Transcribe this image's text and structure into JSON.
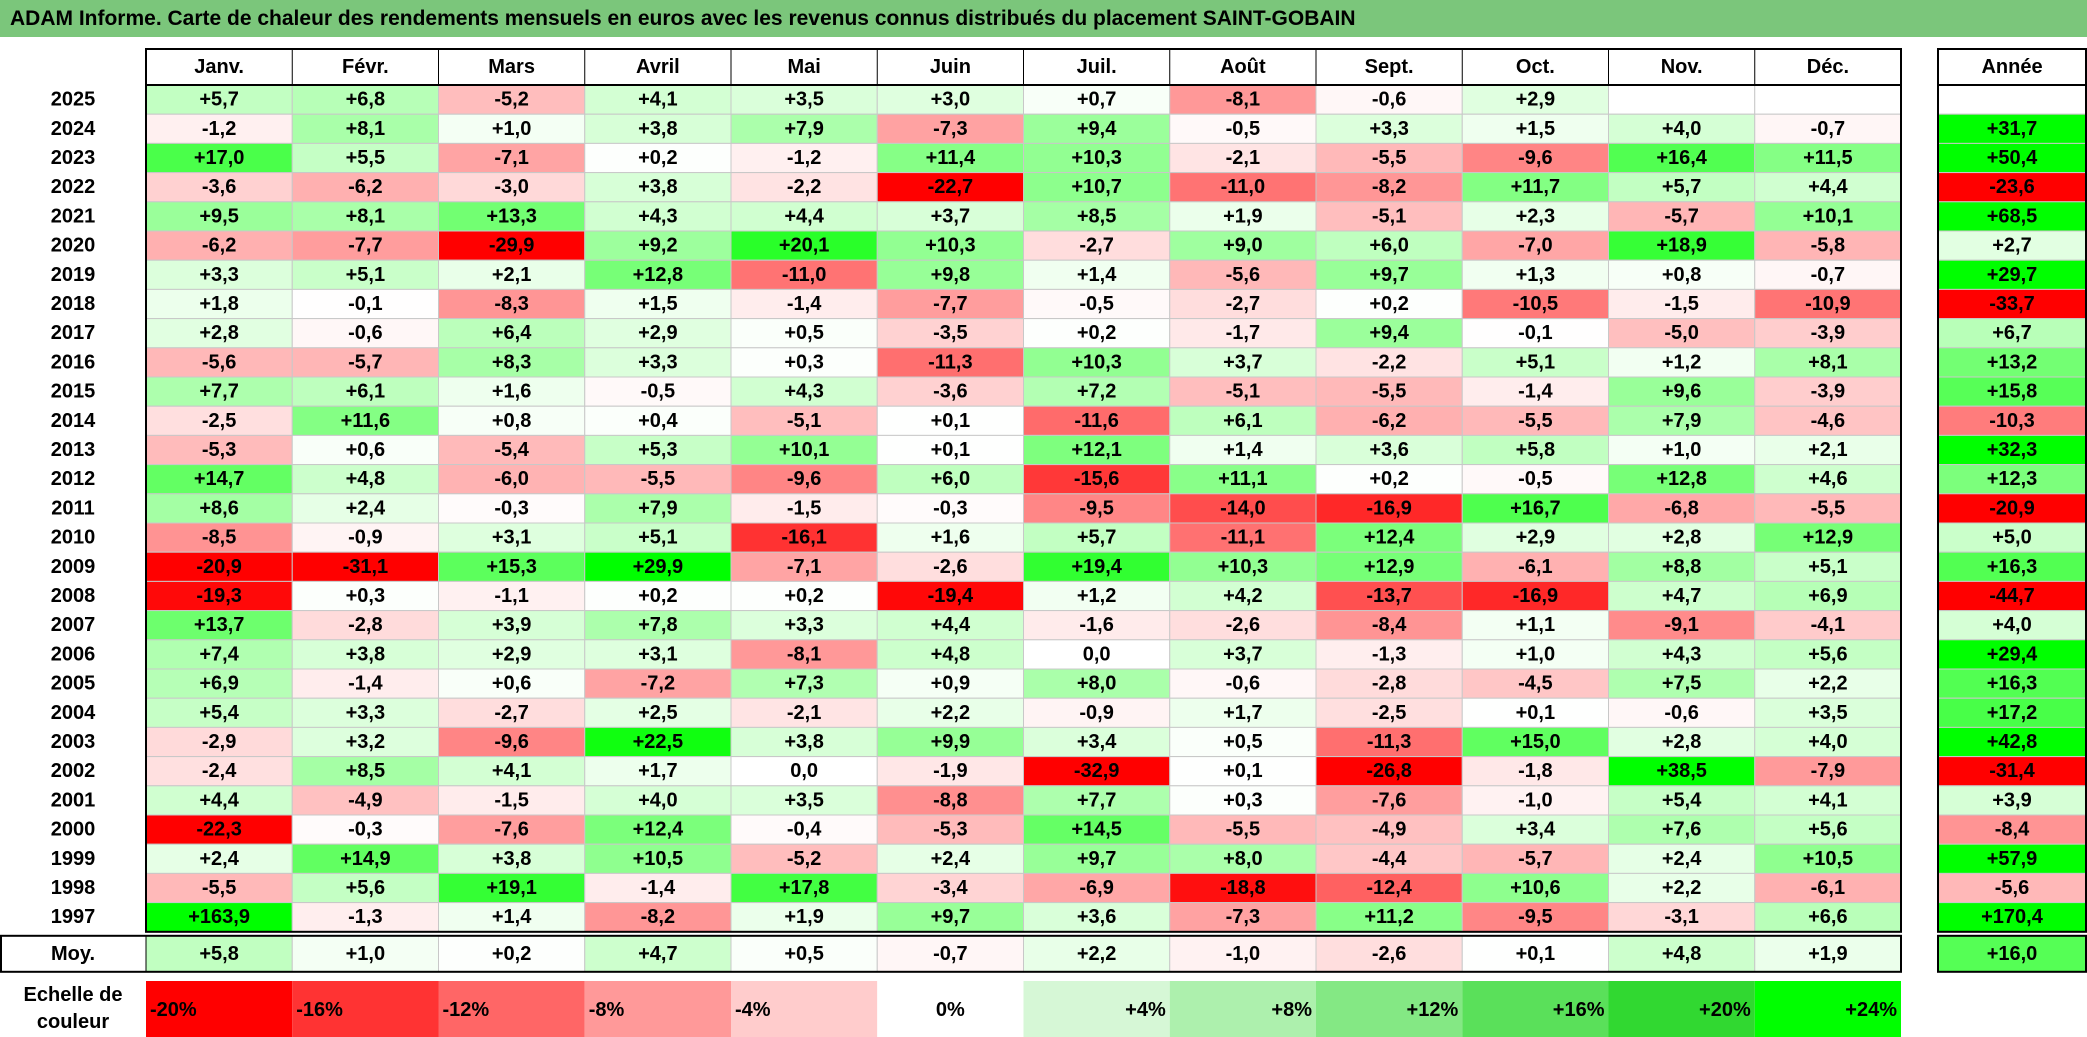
{
  "title": "ADAM Informe. Carte de chaleur des rendements mensuels en euros avec les revenus connus distribués du placement SAINT-GOBAIN",
  "chart_data": {
    "type": "heatmap",
    "columns": [
      "Janv.",
      "Févr.",
      "Mars",
      "Avril",
      "Mai",
      "Juin",
      "Juil.",
      "Août",
      "Sept.",
      "Oct.",
      "Nov.",
      "Déc."
    ],
    "year_header": "Année",
    "rows": [
      {
        "label": "2025",
        "values": [
          "+5,7",
          "+6,8",
          "-5,2",
          "+4,1",
          "+3,5",
          "+3,0",
          "+0,7",
          "-8,1",
          "-0,6",
          "+2,9",
          "",
          ""
        ],
        "annual": ""
      },
      {
        "label": "2024",
        "values": [
          "-1,2",
          "+8,1",
          "+1,0",
          "+3,8",
          "+7,9",
          "-7,3",
          "+9,4",
          "-0,5",
          "+3,3",
          "+1,5",
          "+4,0",
          "-0,7"
        ],
        "annual": "+31,7"
      },
      {
        "label": "2023",
        "values": [
          "+17,0",
          "+5,5",
          "-7,1",
          "+0,2",
          "-1,2",
          "+11,4",
          "+10,3",
          "-2,1",
          "-5,5",
          "-9,6",
          "+16,4",
          "+11,5"
        ],
        "annual": "+50,4"
      },
      {
        "label": "2022",
        "values": [
          "-3,6",
          "-6,2",
          "-3,0",
          "+3,8",
          "-2,2",
          "-22,7",
          "+10,7",
          "-11,0",
          "-8,2",
          "+11,7",
          "+5,7",
          "+4,4"
        ],
        "annual": "-23,6"
      },
      {
        "label": "2021",
        "values": [
          "+9,5",
          "+8,1",
          "+13,3",
          "+4,3",
          "+4,4",
          "+3,7",
          "+8,5",
          "+1,9",
          "-5,1",
          "+2,3",
          "-5,7",
          "+10,1"
        ],
        "annual": "+68,5"
      },
      {
        "label": "2020",
        "values": [
          "-6,2",
          "-7,7",
          "-29,9",
          "+9,2",
          "+20,1",
          "+10,3",
          "-2,7",
          "+9,0",
          "+6,0",
          "-7,0",
          "+18,9",
          "-5,8"
        ],
        "annual": "+2,7"
      },
      {
        "label": "2019",
        "values": [
          "+3,3",
          "+5,1",
          "+2,1",
          "+12,8",
          "-11,0",
          "+9,8",
          "+1,4",
          "-5,6",
          "+9,7",
          "+1,3",
          "+0,8",
          "-0,7"
        ],
        "annual": "+29,7"
      },
      {
        "label": "2018",
        "values": [
          "+1,8",
          "-0,1",
          "-8,3",
          "+1,5",
          "-1,4",
          "-7,7",
          "-0,5",
          "-2,7",
          "+0,2",
          "-10,5",
          "-1,5",
          "-10,9"
        ],
        "annual": "-33,7"
      },
      {
        "label": "2017",
        "values": [
          "+2,8",
          "-0,6",
          "+6,4",
          "+2,9",
          "+0,5",
          "-3,5",
          "+0,2",
          "-1,7",
          "+9,4",
          "-0,1",
          "-5,0",
          "-3,9"
        ],
        "annual": "+6,7"
      },
      {
        "label": "2016",
        "values": [
          "-5,6",
          "-5,7",
          "+8,3",
          "+3,3",
          "+0,3",
          "-11,3",
          "+10,3",
          "+3,7",
          "-2,2",
          "+5,1",
          "+1,2",
          "+8,1"
        ],
        "annual": "+13,2"
      },
      {
        "label": "2015",
        "values": [
          "+7,7",
          "+6,1",
          "+1,6",
          "-0,5",
          "+4,3",
          "-3,6",
          "+7,2",
          "-5,1",
          "-5,5",
          "-1,4",
          "+9,6",
          "-3,9"
        ],
        "annual": "+15,8"
      },
      {
        "label": "2014",
        "values": [
          "-2,5",
          "+11,6",
          "+0,8",
          "+0,4",
          "-5,1",
          "+0,1",
          "-11,6",
          "+6,1",
          "-6,2",
          "-5,5",
          "+7,9",
          "-4,6"
        ],
        "annual": "-10,3"
      },
      {
        "label": "2013",
        "values": [
          "-5,3",
          "+0,6",
          "-5,4",
          "+5,3",
          "+10,1",
          "+0,1",
          "+12,1",
          "+1,4",
          "+3,6",
          "+5,8",
          "+1,0",
          "+2,1"
        ],
        "annual": "+32,3"
      },
      {
        "label": "2012",
        "values": [
          "+14,7",
          "+4,8",
          "-6,0",
          "-5,5",
          "-9,6",
          "+6,0",
          "-15,6",
          "+11,1",
          "+0,2",
          "-0,5",
          "+12,8",
          "+4,6"
        ],
        "annual": "+12,3"
      },
      {
        "label": "2011",
        "values": [
          "+8,6",
          "+2,4",
          "-0,3",
          "+7,9",
          "-1,5",
          "-0,3",
          "-9,5",
          "-14,0",
          "-16,9",
          "+16,7",
          "-6,8",
          "-5,5"
        ],
        "annual": "-20,9"
      },
      {
        "label": "2010",
        "values": [
          "-8,5",
          "-0,9",
          "+3,1",
          "+5,1",
          "-16,1",
          "+1,6",
          "+5,7",
          "-11,1",
          "+12,4",
          "+2,9",
          "+2,8",
          "+12,9"
        ],
        "annual": "+5,0"
      },
      {
        "label": "2009",
        "values": [
          "-20,9",
          "-31,1",
          "+15,3",
          "+29,9",
          "-7,1",
          "-2,6",
          "+19,4",
          "+10,3",
          "+12,9",
          "-6,1",
          "+8,8",
          "+5,1"
        ],
        "annual": "+16,3"
      },
      {
        "label": "2008",
        "values": [
          "-19,3",
          "+0,3",
          "-1,1",
          "+0,2",
          "+0,2",
          "-19,4",
          "+1,2",
          "+4,2",
          "-13,7",
          "-16,9",
          "+4,7",
          "+6,9"
        ],
        "annual": "-44,7"
      },
      {
        "label": "2007",
        "values": [
          "+13,7",
          "-2,8",
          "+3,9",
          "+7,8",
          "+3,3",
          "+4,4",
          "-1,6",
          "-2,6",
          "-8,4",
          "+1,1",
          "-9,1",
          "-4,1"
        ],
        "annual": "+4,0"
      },
      {
        "label": "2006",
        "values": [
          "+7,4",
          "+3,8",
          "+2,9",
          "+3,1",
          "-8,1",
          "+4,8",
          "0,0",
          "+3,7",
          "-1,3",
          "+1,0",
          "+4,3",
          "+5,6"
        ],
        "annual": "+29,4"
      },
      {
        "label": "2005",
        "values": [
          "+6,9",
          "-1,4",
          "+0,6",
          "-7,2",
          "+7,3",
          "+0,9",
          "+8,0",
          "-0,6",
          "-2,8",
          "-4,5",
          "+7,5",
          "+2,2"
        ],
        "annual": "+16,3"
      },
      {
        "label": "2004",
        "values": [
          "+5,4",
          "+3,3",
          "-2,7",
          "+2,5",
          "-2,1",
          "+2,2",
          "-0,9",
          "+1,7",
          "-2,5",
          "+0,1",
          "-0,6",
          "+3,5"
        ],
        "annual": "+17,2"
      },
      {
        "label": "2003",
        "values": [
          "-2,9",
          "+3,2",
          "-9,6",
          "+22,5",
          "+3,8",
          "+9,9",
          "+3,4",
          "+0,5",
          "-11,3",
          "+15,0",
          "+2,8",
          "+4,0"
        ],
        "annual": "+42,8"
      },
      {
        "label": "2002",
        "values": [
          "-2,4",
          "+8,5",
          "+4,1",
          "+1,7",
          "0,0",
          "-1,9",
          "-32,9",
          "+0,1",
          "-26,8",
          "-1,8",
          "+38,5",
          "-7,9"
        ],
        "annual": "-31,4"
      },
      {
        "label": "2001",
        "values": [
          "+4,4",
          "-4,9",
          "-1,5",
          "+4,0",
          "+3,5",
          "-8,8",
          "+7,7",
          "+0,3",
          "-7,6",
          "-1,0",
          "+5,4",
          "+4,1"
        ],
        "annual": "+3,9"
      },
      {
        "label": "2000",
        "values": [
          "-22,3",
          "-0,3",
          "-7,6",
          "+12,4",
          "-0,4",
          "-5,3",
          "+14,5",
          "-5,5",
          "-4,9",
          "+3,4",
          "+7,6",
          "+5,6"
        ],
        "annual": "-8,4"
      },
      {
        "label": "1999",
        "values": [
          "+2,4",
          "+14,9",
          "+3,8",
          "+10,5",
          "-5,2",
          "+2,4",
          "+9,7",
          "+8,0",
          "-4,4",
          "-5,7",
          "+2,4",
          "+10,5"
        ],
        "annual": "+57,9"
      },
      {
        "label": "1998",
        "values": [
          "-5,5",
          "+5,6",
          "+19,1",
          "-1,4",
          "+17,8",
          "-3,4",
          "-6,9",
          "-18,8",
          "-12,4",
          "+10,6",
          "+2,2",
          "-6,1"
        ],
        "annual": "-5,6"
      },
      {
        "label": "1997",
        "values": [
          "+163,9",
          "-1,3",
          "+1,4",
          "-8,2",
          "+1,9",
          "+9,7",
          "+3,6",
          "-7,3",
          "+11,2",
          "-9,5",
          "-3,1",
          "+6,6"
        ],
        "annual": "+170,4"
      }
    ],
    "average_row": {
      "label": "Moy.",
      "values": [
        "+5,8",
        "+1,0",
        "+0,2",
        "+4,7",
        "+0,5",
        "-0,7",
        "+2,2",
        "-1,0",
        "-2,6",
        "+0,1",
        "+4,8",
        "+1,9"
      ],
      "annual": "+16,0"
    },
    "color_scale": {
      "label": "Echelle de couleur",
      "steps": [
        {
          "label": "-20%",
          "color": "#ff0000"
        },
        {
          "label": "-16%",
          "color": "#ff3333"
        },
        {
          "label": "-12%",
          "color": "#ff6666"
        },
        {
          "label": "-8%",
          "color": "#ff9999"
        },
        {
          "label": "-4%",
          "color": "#ffcccc"
        },
        {
          "label": "0%",
          "color": "#ffffff"
        },
        {
          "label": "+4%",
          "color": "#d6f7d6"
        },
        {
          "label": "+8%",
          "color": "#adf0ad"
        },
        {
          "label": "+12%",
          "color": "#84e884"
        },
        {
          "label": "+16%",
          "color": "#5ae05a"
        },
        {
          "label": "+20%",
          "color": "#31d831"
        },
        {
          "label": "+24%",
          "color": "#00ff00"
        }
      ]
    }
  }
}
